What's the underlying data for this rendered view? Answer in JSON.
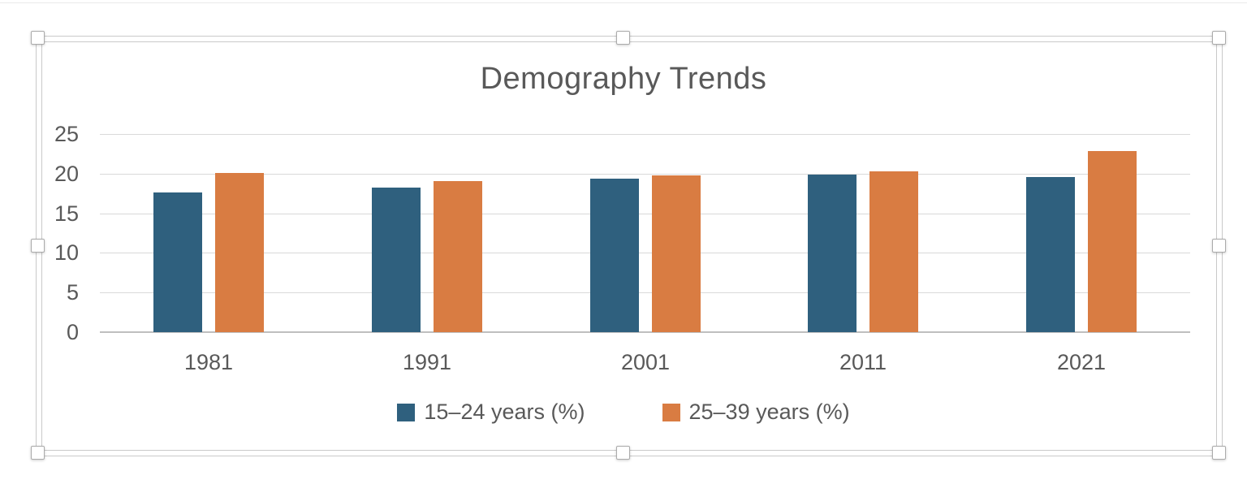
{
  "chart_data": {
    "type": "bar",
    "title": "Demography Trends",
    "categories": [
      "1981",
      "1991",
      "2001",
      "2011",
      "2021"
    ],
    "series": [
      {
        "name": "15–24 years (%)",
        "color": "#2F607E",
        "values": [
          17.6,
          18.2,
          19.4,
          19.9,
          19.6
        ]
      },
      {
        "name": "25–39 years (%)",
        "color": "#D97C42",
        "values": [
          20.1,
          19.1,
          19.8,
          20.3,
          22.8
        ]
      }
    ],
    "ylim": [
      0,
      25
    ],
    "yticks": [
      25,
      20,
      15,
      10,
      5,
      0
    ],
    "grid": true,
    "legend_position": "bottom",
    "colors": {
      "text": "#595959",
      "gridline": "#D9D9D9",
      "axis_line": "#BFBFBF",
      "selection_border": "#C9C9C9"
    }
  },
  "ui": {
    "state": "chart selected",
    "selection_handles": [
      "top-left",
      "top-center",
      "top-right",
      "middle-left",
      "middle-right",
      "bottom-left",
      "bottom-center",
      "bottom-right"
    ]
  }
}
